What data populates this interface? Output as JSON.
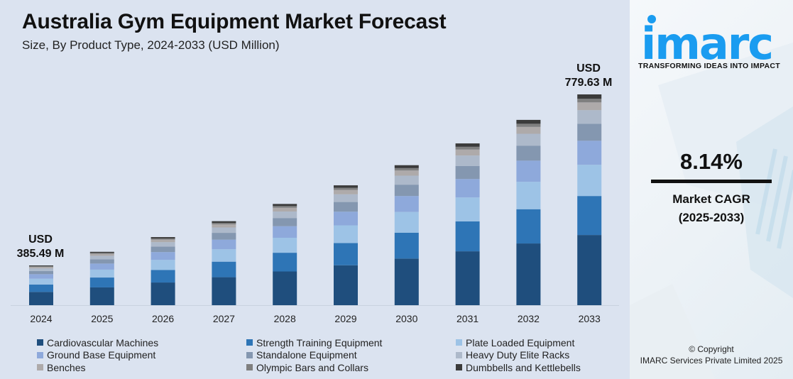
{
  "header": {
    "title": "Australia Gym Equipment Market Forecast",
    "subtitle": "Size, By Product Type, 2024-2033 (USD Million)"
  },
  "annotations": {
    "start_line1": "USD",
    "start_line2": "385.49 M",
    "end_line1": "USD",
    "end_line2": "779.63 M"
  },
  "side": {
    "logo": "imarc",
    "tagline": "TRANSFORMING IDEAS INTO IMPACT",
    "cagr_value": "8.14%",
    "cagr_label": "Market CAGR",
    "cagr_period": "(2025-2033)",
    "copyright_line1": "© Copyright",
    "copyright_line2": "IMARC Services Private Limited 2025",
    "brand_color": "#1a9cf0"
  },
  "chart_data": {
    "type": "bar",
    "stacked": true,
    "title": "Australia Gym Equipment Market Forecast",
    "subtitle": "Size, By Product Type, 2024-2033 (USD Million)",
    "xlabel": "",
    "ylabel": "USD Million",
    "grid": false,
    "legend_position": "bottom",
    "categories": [
      "2024",
      "2025",
      "2026",
      "2027",
      "2028",
      "2029",
      "2030",
      "2031",
      "2032",
      "2033"
    ],
    "totals": [
      385.49,
      416.9,
      450.8,
      487.5,
      527.2,
      570.1,
      616.5,
      666.7,
      720.9,
      779.63
    ],
    "series": [
      {
        "name": "Cardiovascular Machines",
        "color": "#1f4e7d",
        "share": 0.333
      },
      {
        "name": "Strength Training Equipment",
        "color": "#2e75b6",
        "share": 0.185
      },
      {
        "name": "Plate Loaded Equipment",
        "color": "#9dc3e6",
        "share": 0.148
      },
      {
        "name": "Ground Base Equipment",
        "color": "#8ea9db",
        "share": 0.114
      },
      {
        "name": "Standalone Equipment",
        "color": "#8497b0",
        "share": 0.081
      },
      {
        "name": "Heavy Duty Elite Racks",
        "color": "#adb9ca",
        "share": 0.064
      },
      {
        "name": "Benches",
        "color": "#aeaaaa",
        "share": 0.037
      },
      {
        "name": "Olympic Bars and Collars",
        "color": "#7f7f7f",
        "share": 0.017
      },
      {
        "name": "Dumbbells and Kettlebells",
        "color": "#3b3b3b",
        "share": 0.021
      }
    ]
  }
}
